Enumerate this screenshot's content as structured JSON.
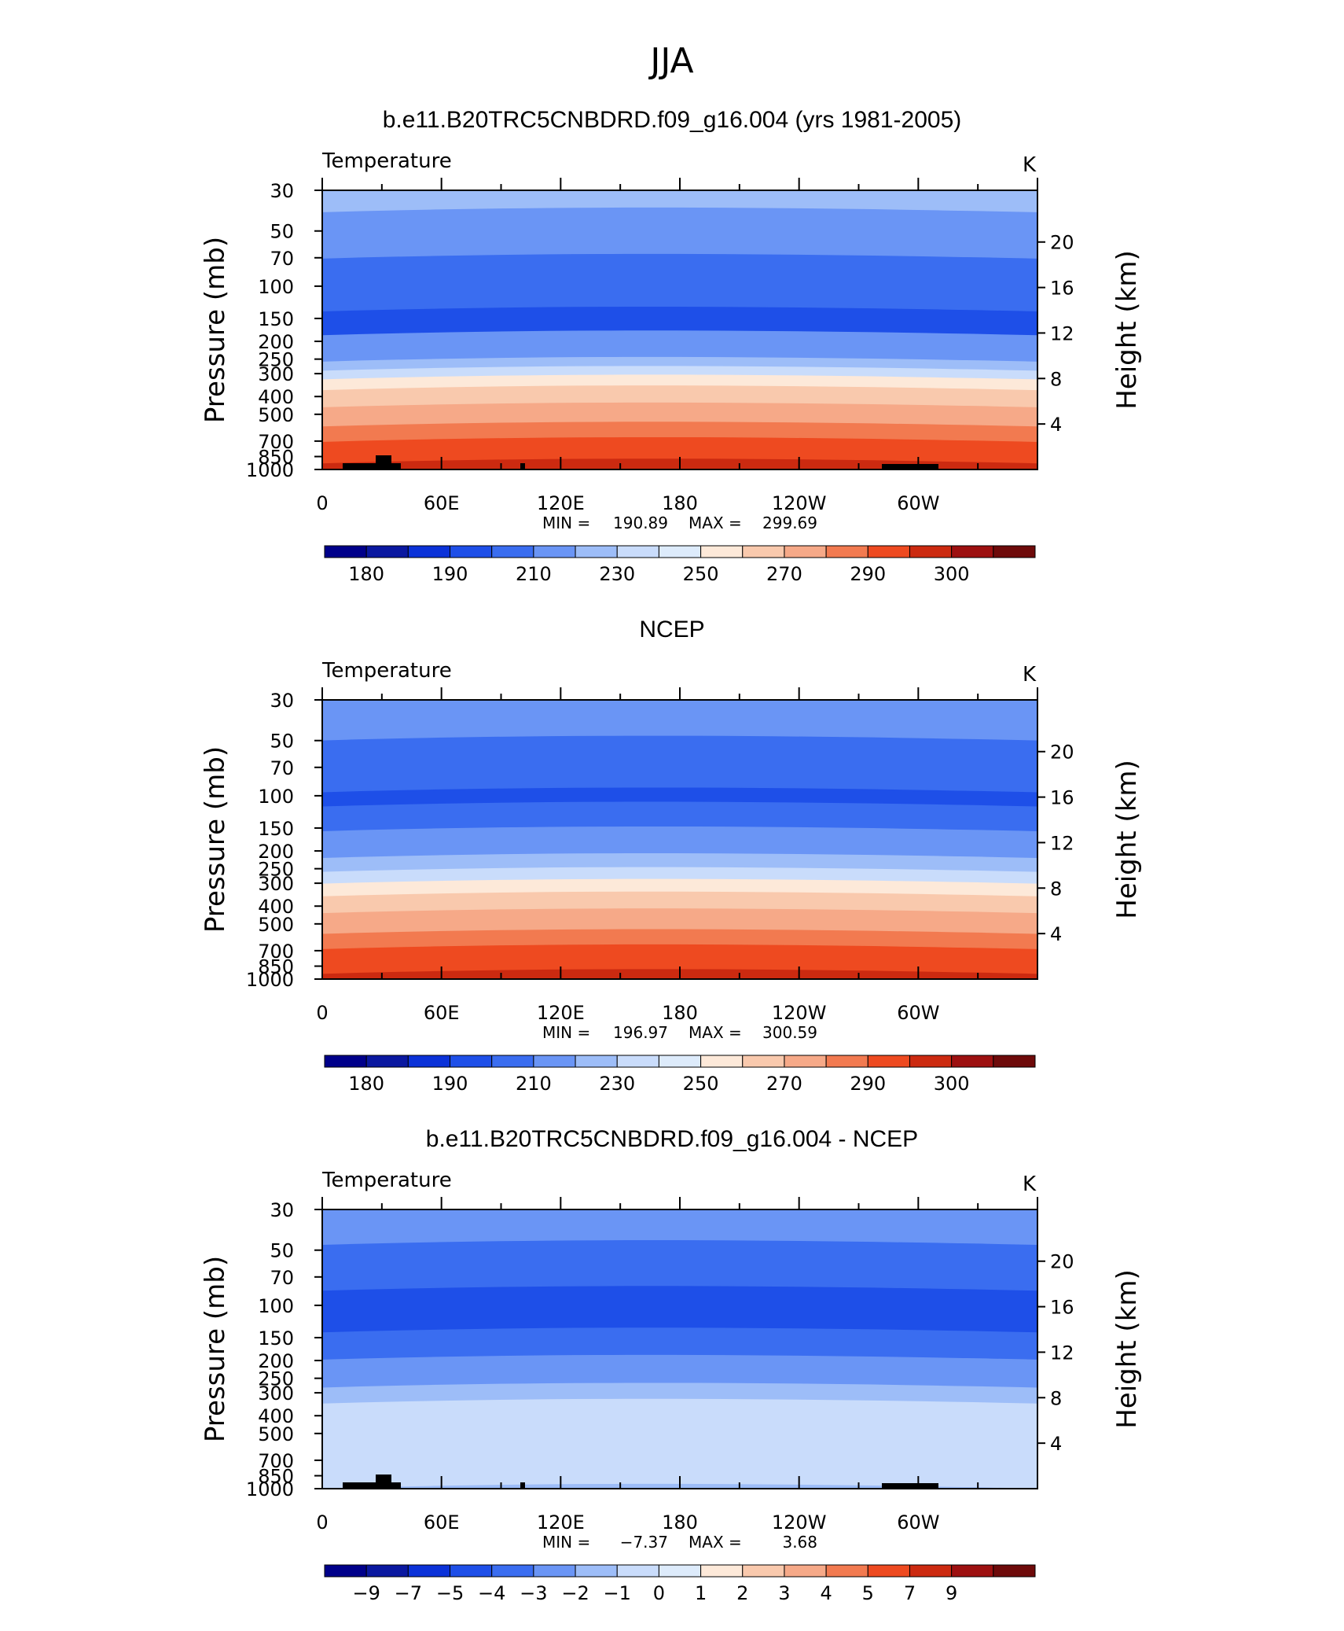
{
  "figure": {
    "season_title": "JJA"
  },
  "chart_data": [
    {
      "type": "heatmap",
      "title": "b.e11.B20TRC5CNBDRD.f09_g16.004 (yrs 1981-2005)",
      "variable_label": "Temperature",
      "units_label": "K",
      "ylabel": "Pressure (mb)",
      "y2label": "Height (km)",
      "x_ticks": [
        "0",
        "60E",
        "120E",
        "180",
        "120W",
        "60W"
      ],
      "y_ticks": [
        "30",
        "50",
        "70",
        "100",
        "150",
        "200",
        "250",
        "300",
        "400",
        "500",
        "700",
        "850",
        "1000"
      ],
      "y2_ticks": [
        "20",
        "16",
        "12",
        "8",
        "4"
      ],
      "ylim": [
        1000,
        30
      ],
      "stats": {
        "min_label": "MIN",
        "min": "190.89",
        "max_label": "MAX",
        "max": "299.69"
      },
      "colorbar_labels": [
        "180",
        "190",
        "210",
        "230",
        "250",
        "270",
        "290",
        "300"
      ],
      "colors": [
        "#00008a",
        "#0a18a0",
        "#0b32d8",
        "#1e4fe8",
        "#3a6df0",
        "#6a95f5",
        "#9dbdf8",
        "#c9dcfb",
        "#ddebfb",
        "#fde9d9",
        "#f9c9ad",
        "#f6a988",
        "#f27a50",
        "#ee4a20",
        "#cc2a10",
        "#9d1010",
        "#6e0a0a"
      ],
      "bands": [
        {
          "p": 30,
          "c": 6
        },
        {
          "p": 38,
          "c": 5
        },
        {
          "p": 68,
          "c": 4
        },
        {
          "p": 132,
          "c": 3
        },
        {
          "p": 178,
          "c": 5
        },
        {
          "p": 248,
          "c": 6
        },
        {
          "p": 278,
          "c": 7
        },
        {
          "p": 310,
          "c": 9
        },
        {
          "p": 355,
          "c": 10
        },
        {
          "p": 440,
          "c": 11
        },
        {
          "p": 560,
          "c": 12
        },
        {
          "p": 680,
          "c": 13
        },
        {
          "p": 890,
          "c": 14
        }
      ],
      "terrain": true
    },
    {
      "type": "heatmap",
      "title": "NCEP",
      "variable_label": "Temperature",
      "units_label": "K",
      "ylabel": "Pressure (mb)",
      "y2label": "Height (km)",
      "x_ticks": [
        "0",
        "60E",
        "120E",
        "180",
        "120W",
        "60W"
      ],
      "y_ticks": [
        "30",
        "50",
        "70",
        "100",
        "150",
        "200",
        "250",
        "300",
        "400",
        "500",
        "700",
        "850",
        "1000"
      ],
      "y2_ticks": [
        "20",
        "16",
        "12",
        "8",
        "4"
      ],
      "ylim": [
        1000,
        30
      ],
      "stats": {
        "min_label": "MIN",
        "min": "196.97",
        "max_label": "MAX",
        "max": "300.59"
      },
      "colorbar_labels": [
        "180",
        "190",
        "210",
        "230",
        "250",
        "270",
        "290",
        "300"
      ],
      "colors": [
        "#00008a",
        "#0a18a0",
        "#0b32d8",
        "#1e4fe8",
        "#3a6df0",
        "#6a95f5",
        "#9dbdf8",
        "#c9dcfb",
        "#ddebfb",
        "#fde9d9",
        "#f9c9ad",
        "#f6a988",
        "#f27a50",
        "#ee4a20",
        "#cc2a10",
        "#9d1010",
        "#6e0a0a"
      ],
      "bands": [
        {
          "p": 30,
          "c": 5
        },
        {
          "p": 48,
          "c": 4
        },
        {
          "p": 92,
          "c": 3
        },
        {
          "p": 110,
          "c": 4
        },
        {
          "p": 150,
          "c": 5
        },
        {
          "p": 210,
          "c": 6
        },
        {
          "p": 250,
          "c": 7
        },
        {
          "p": 290,
          "c": 9
        },
        {
          "p": 340,
          "c": 10
        },
        {
          "p": 420,
          "c": 11
        },
        {
          "p": 545,
          "c": 12
        },
        {
          "p": 660,
          "c": 13
        },
        {
          "p": 900,
          "c": 14
        }
      ],
      "terrain": false
    },
    {
      "type": "heatmap",
      "title": "b.e11.B20TRC5CNBDRD.f09_g16.004 - NCEP",
      "variable_label": "Temperature",
      "units_label": "K",
      "ylabel": "Pressure (mb)",
      "y2label": "Height (km)",
      "x_ticks": [
        "0",
        "60E",
        "120E",
        "180",
        "120W",
        "60W"
      ],
      "y_ticks": [
        "30",
        "50",
        "70",
        "100",
        "150",
        "200",
        "250",
        "300",
        "400",
        "500",
        "700",
        "850",
        "1000"
      ],
      "y2_ticks": [
        "20",
        "16",
        "12",
        "8",
        "4"
      ],
      "ylim": [
        1000,
        30
      ],
      "stats": {
        "min_label": "MIN",
        "min": "−7.37",
        "max_label": "MAX",
        "max": "3.68"
      },
      "colorbar_labels": [
        "−9",
        "−7",
        "−5",
        "−4",
        "−3",
        "−2",
        "−1",
        "0",
        "1",
        "2",
        "3",
        "4",
        "5",
        "7",
        "9"
      ],
      "colors": [
        "#00008a",
        "#0a18a0",
        "#0b32d8",
        "#1e4fe8",
        "#3a6df0",
        "#6a95f5",
        "#9dbdf8",
        "#c9dcfb",
        "#ddebfb",
        "#fde9d9",
        "#f9c9ad",
        "#f6a988",
        "#f27a50",
        "#ee4a20",
        "#cc2a10",
        "#9d1010",
        "#6e0a0a"
      ],
      "bands": [
        {
          "p": 30,
          "c": 5
        },
        {
          "p": 45,
          "c": 4
        },
        {
          "p": 80,
          "c": 3
        },
        {
          "p": 135,
          "c": 4
        },
        {
          "p": 190,
          "c": 5
        },
        {
          "p": 270,
          "c": 6
        },
        {
          "p": 330,
          "c": 7
        },
        {
          "p": 960,
          "c": 6
        }
      ],
      "terrain": true
    }
  ]
}
